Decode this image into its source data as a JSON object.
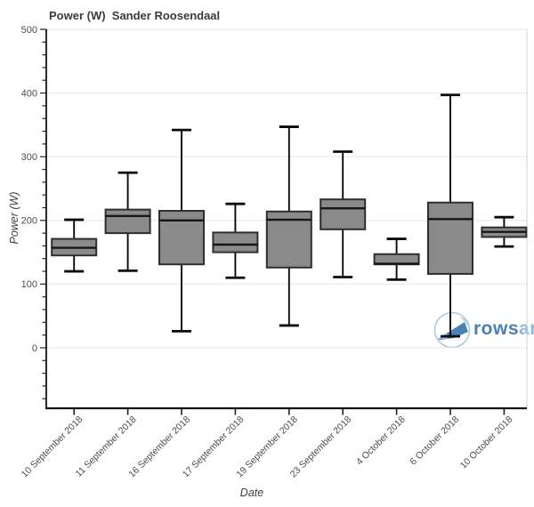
{
  "title": "Power (W)  Sander Roosendaal",
  "watermark": {
    "text_primary": "rows",
    "text_secondary": "andall",
    "icon": "rowing-boat-in-circle-logo"
  },
  "chart_data": {
    "type": "boxplot",
    "title": "Power (W)  Sander Roosendaal",
    "xlabel": "Date",
    "ylabel": "Power (W)",
    "ylim": [
      -95,
      500
    ],
    "y_major_ticks": [
      0,
      100,
      200,
      300,
      400,
      500
    ],
    "y_minor_step": 20,
    "grid": "horizontal-major-only",
    "legend": "none",
    "categories": [
      "10 September 2018",
      "11 September 2018",
      "16 September 2018",
      "17 September 2018",
      "19 September 2018",
      "23 September 2018",
      "4 October 2018",
      "6 October 2018",
      "10 October 2018"
    ],
    "series": [
      {
        "category": "10 September 2018",
        "low": 120,
        "q1": 145,
        "median": 157,
        "q3": 171,
        "high": 201
      },
      {
        "category": "11 September 2018",
        "low": 121,
        "q1": 180,
        "median": 207,
        "q3": 217,
        "high": 275
      },
      {
        "category": "16 September 2018",
        "low": 26,
        "q1": 131,
        "median": 200,
        "q3": 215,
        "high": 342
      },
      {
        "category": "17 September 2018",
        "low": 110,
        "q1": 150,
        "median": 162,
        "q3": 181,
        "high": 226
      },
      {
        "category": "19 September 2018",
        "low": 35,
        "q1": 126,
        "median": 201,
        "q3": 214,
        "high": 347
      },
      {
        "category": "23 September 2018",
        "low": 111,
        "q1": 186,
        "median": 219,
        "q3": 233,
        "high": 308
      },
      {
        "category": "4 October 2018",
        "low": 107,
        "q1": 131,
        "median": 132,
        "q3": 147,
        "high": 171
      },
      {
        "category": "6 October 2018",
        "low": 18,
        "q1": 116,
        "median": 202,
        "q3": 228,
        "high": 397
      },
      {
        "category": "10 October 2018",
        "low": 159,
        "q1": 174,
        "median": 182,
        "q3": 189,
        "high": 205
      }
    ],
    "colors": {
      "box_fill": "#8a8a8a",
      "box_stroke": "#2e2e2e",
      "median": "#161616",
      "whisker": "#0a0a0a",
      "grid": "#eaeaea",
      "frame": "#d2d2d2",
      "axis": "#141414",
      "tick": "#222222",
      "tick_label": "#4d4d4d",
      "title": "#3a3a3a",
      "watermark_dark": "#4a80b2",
      "watermark_light": "#8fb9dc",
      "watermark_circle": "#a9cbe4"
    }
  }
}
